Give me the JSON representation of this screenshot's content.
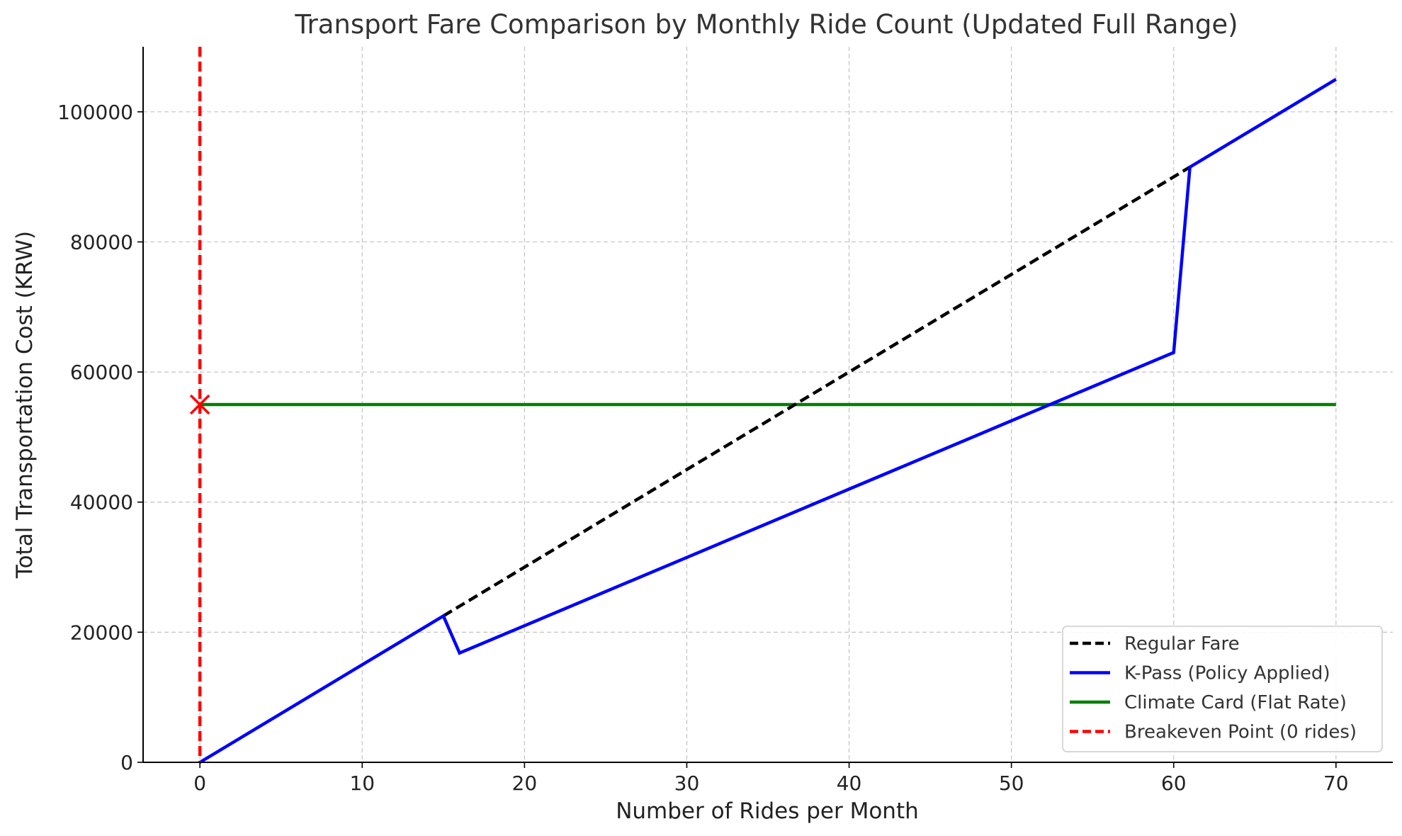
{
  "chart_data": {
    "type": "line",
    "title": "Transport Fare Comparison by Monthly Ride Count (Updated Full Range)",
    "xlabel": "Number of Rides per Month",
    "ylabel": "Total Transportation Cost (KRW)",
    "xlim": [
      -3.5,
      73.5
    ],
    "ylim": [
      0,
      110000
    ],
    "xticks": [
      0,
      10,
      20,
      30,
      40,
      50,
      60,
      70
    ],
    "yticks": [
      0,
      20000,
      40000,
      60000,
      80000,
      100000
    ],
    "grid": true,
    "legend_position": "lower right",
    "series": [
      {
        "name": "Regular Fare",
        "color": "#000000",
        "style": "dashed",
        "x": [
          0,
          70
        ],
        "y": [
          0,
          105000
        ]
      },
      {
        "name": "K-Pass (Policy Applied)",
        "color": "#0000ff",
        "style": "solid",
        "x": [
          0,
          15,
          16,
          60,
          61,
          70
        ],
        "y": [
          0,
          22500,
          16800,
          63000,
          91500,
          105000
        ]
      },
      {
        "name": "Climate Card (Flat Rate)",
        "color": "#008000",
        "style": "solid",
        "x": [
          0,
          70
        ],
        "y": [
          55000,
          55000
        ]
      },
      {
        "name": "Breakeven Point (0 rides)",
        "color": "#ff0000",
        "style": "dashed",
        "vertical_x": 0
      }
    ],
    "markers": [
      {
        "x": 0,
        "y": 55000,
        "symbol": "x",
        "color": "#ff0000"
      }
    ]
  }
}
